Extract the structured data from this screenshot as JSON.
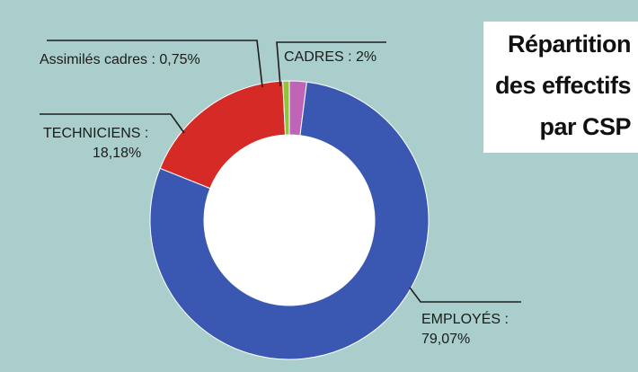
{
  "chart_data": {
    "type": "donut",
    "title_lines": [
      "Répartition",
      "des effectifs",
      "par CSP"
    ],
    "slices": [
      {
        "name": "CADRES",
        "value": 2.0,
        "color": "#c064b8",
        "label_lines": [
          "CADRES : 2%"
        ]
      },
      {
        "name": "EMPLOYÉS",
        "value": 79.07,
        "color": "#3a58b2",
        "label_lines": [
          "EMPLOYÉS :",
          "79,07%"
        ]
      },
      {
        "name": "TECHNICIENS",
        "value": 18.18,
        "color": "#d52a26",
        "label_lines": [
          "TECHNICIENS :",
          "18,18%"
        ]
      },
      {
        "name": "Assimilés cadres",
        "value": 0.75,
        "color": "#8fc43c",
        "label_lines": [
          "Assimilés cadres : 0,75%"
        ]
      }
    ],
    "start": "top, clockwise"
  }
}
